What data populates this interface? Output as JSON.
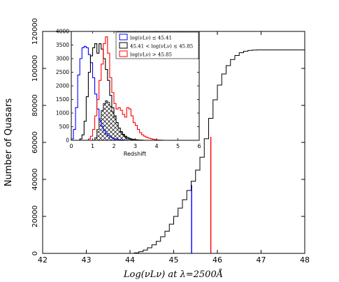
{
  "chart_data": [
    {
      "type": "line",
      "subtype": "cumulative-step-histogram",
      "xlabel": "Log(νLν) at λ=2500Å",
      "ylabel": "Number of Quasars",
      "xlim": [
        42,
        48
      ],
      "ylim": [
        0,
        120000
      ],
      "xticks": [
        "42",
        "43",
        "44",
        "45",
        "46",
        "47",
        "48"
      ],
      "yticks": [
        "0",
        "20000",
        "40000",
        "60000",
        "80000",
        "100000",
        "120000"
      ],
      "series": [
        {
          "x": [
            44.0,
            44.1,
            44.2,
            44.3,
            44.4,
            44.5,
            44.6,
            44.7,
            44.8,
            44.9,
            45.0,
            45.1,
            45.2,
            45.3,
            45.4,
            45.5,
            45.6,
            45.7,
            45.8,
            45.9,
            46.0,
            46.1,
            46.2,
            46.3,
            46.4,
            46.5,
            46.6,
            46.7,
            46.8,
            46.9,
            47.0,
            48.0
          ],
          "y": [
            0,
            300,
            900,
            1800,
            3000,
            4600,
            6500,
            9000,
            12000,
            15800,
            20000,
            24500,
            29000,
            34000,
            39000,
            45000,
            52000,
            62000,
            73000,
            83000,
            91000,
            97000,
            101500,
            104800,
            107000,
            108500,
            109300,
            109700,
            109900,
            110000,
            110000,
            110000
          ],
          "color": "#000000"
        }
      ],
      "markers": [
        {
          "x": 45.41,
          "y": 37000,
          "color": "#0000ff"
        },
        {
          "x": 45.85,
          "y": 63000,
          "color": "#ff0000"
        }
      ]
    },
    {
      "type": "bar",
      "subtype": "step-histogram-inset",
      "xlabel": "Redshift",
      "xlim": [
        0,
        6
      ],
      "ylim": [
        0,
        4000
      ],
      "xticks": [
        "0",
        "1",
        "2",
        "3",
        "4",
        "5",
        "6"
      ],
      "yticks": [
        "0",
        "500",
        "1000",
        "1500",
        "2000",
        "2500",
        "3000",
        "3500",
        "4000"
      ],
      "bin_width": 0.1,
      "bin_start": 0.0,
      "legend_position": "top-right",
      "series": [
        {
          "name": "log(νLν) ≤ 45.41",
          "color": "#0000ff",
          "values": [
            50,
            400,
            1200,
            2400,
            3000,
            3400,
            3450,
            3400,
            3150,
            2850,
            2300,
            1700,
            1150,
            750,
            520,
            360,
            240,
            170,
            120,
            80,
            55,
            35,
            20,
            12,
            7,
            4,
            0
          ]
        },
        {
          "name": "45.41 < log(νLν) ≤ 45.85",
          "color": "#000000",
          "values": [
            0,
            0,
            0,
            0,
            50,
            200,
            700,
            1600,
            2500,
            3100,
            3400,
            3550,
            3200,
            3550,
            3350,
            3000,
            2600,
            2200,
            1650,
            1200,
            900,
            650,
            450,
            320,
            220,
            150,
            100,
            70,
            45,
            30,
            20,
            12,
            7,
            4,
            0
          ]
        },
        {
          "name": "log(νLν) > 45.85",
          "color": "#ff0000",
          "values": [
            0,
            0,
            0,
            0,
            0,
            0,
            0,
            0,
            50,
            150,
            400,
            900,
            1500,
            2200,
            2800,
            3550,
            3800,
            3200,
            2300,
            1750,
            1350,
            1150,
            1200,
            1100,
            950,
            850,
            1200,
            1150,
            900,
            650,
            550,
            400,
            280,
            200,
            150,
            110,
            80,
            60,
            40,
            25,
            15,
            8,
            4,
            0
          ]
        },
        {
          "name": "",
          "color": "#000000",
          "pattern": "crosshatch",
          "values": [
            0,
            0,
            0,
            0,
            0,
            0,
            0,
            0,
            0,
            0,
            0,
            100,
            400,
            800,
            1100,
            1350,
            1450,
            1400,
            1250,
            1050,
            850,
            650,
            450,
            300,
            200,
            120,
            70,
            40,
            20,
            10,
            0
          ]
        }
      ]
    }
  ]
}
